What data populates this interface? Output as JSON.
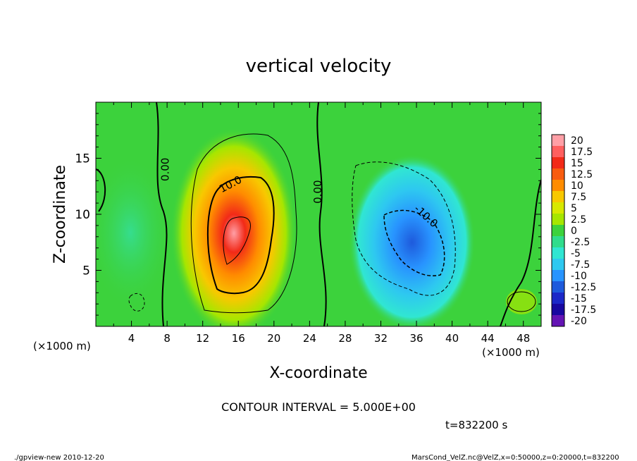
{
  "chart_data": {
    "type": "heatmap",
    "title": "vertical velocity",
    "xlabel": "X-coordinate",
    "ylabel": "Z-coordinate",
    "x_unit_left": "(×1000 m)",
    "x_unit_right": "(×1000 m)",
    "xlim": [
      0,
      50
    ],
    "ylim": [
      0,
      20
    ],
    "x_ticks": [
      4,
      8,
      12,
      16,
      20,
      24,
      28,
      32,
      36,
      40,
      44,
      48
    ],
    "y_ticks": [
      5,
      10,
      15
    ],
    "contour_interval_text": "CONTOUR INTERVAL = 5.000E+00",
    "time_text": "t=832200 s",
    "contour_labels": [
      {
        "text": "0.00",
        "x": 8.2,
        "z": 14.0,
        "rotate": -90
      },
      {
        "text": "10.0",
        "x": 15.3,
        "z": 12.4,
        "rotate": -28
      },
      {
        "text": "0.00",
        "x": 25.3,
        "z": 12.0,
        "rotate": -90
      },
      {
        "text": "-10.0",
        "x": 36.8,
        "z": 9.6,
        "rotate": 42
      }
    ],
    "updraft": {
      "x": 15.5,
      "z": 8.3,
      "peak": 18
    },
    "downdraft": {
      "x": 35.5,
      "z": 7.5,
      "peak": -12
    },
    "colorbar": {
      "labels": [
        "20",
        "17.5",
        "15",
        "12.5",
        "10",
        "7.5",
        "5",
        "2.5",
        "0",
        "-2.5",
        "-5",
        "-7.5",
        "-10",
        "-12.5",
        "-15",
        "-17.5",
        "-20"
      ],
      "colors": [
        "#ff9fa6",
        "#ff5f5f",
        "#f22a18",
        "#f85c10",
        "#ff8c00",
        "#f8c800",
        "#d8e800",
        "#a6e600",
        "#3cd23c",
        "#30dc8c",
        "#30e6d2",
        "#2ec8f0",
        "#2894ff",
        "#1e5adc",
        "#1c28c8",
        "#1808a0",
        "#6414b4"
      ]
    }
  },
  "footer": {
    "left": "./gpview-new  2010-12-20",
    "right": "MarsCond_VelZ.nc@VelZ,x=0:50000,z=0:20000,t=832200"
  }
}
